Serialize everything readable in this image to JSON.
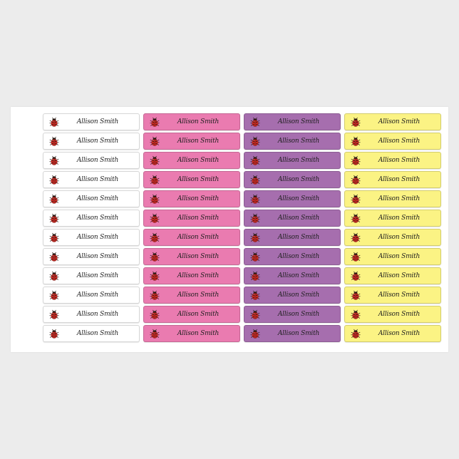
{
  "product": {
    "label_name": "Allison Smith",
    "rows_per_column": 12,
    "icon": "ladybug-icon",
    "columns": [
      {
        "name": "white",
        "color": "#ffffff"
      },
      {
        "name": "pink",
        "color": "#ea7bb0"
      },
      {
        "name": "purple",
        "color": "#a66eae"
      },
      {
        "name": "yellow",
        "color": "#fbf384"
      }
    ]
  }
}
